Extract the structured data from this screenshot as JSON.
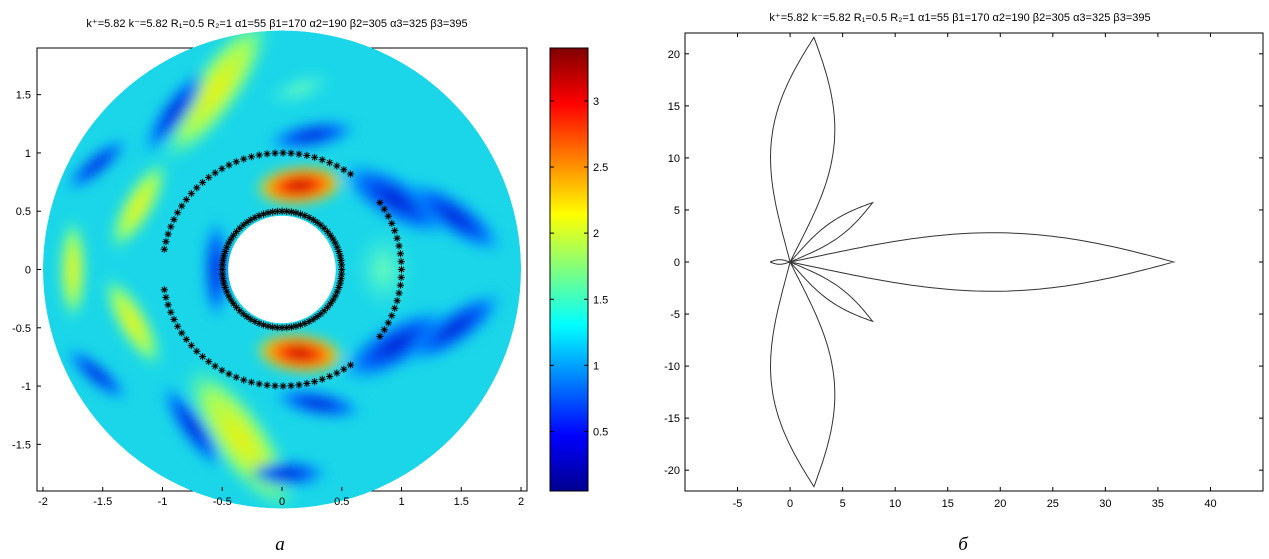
{
  "chart_data": [
    {
      "type": "heatmap",
      "title": "k⁺=5.82  k⁻=5.82  R₁=0.5  R₂=1  α1=55  β1=170  α2=190  β2=305  α3=325  β3=395",
      "caption": "а",
      "xlabel": "",
      "ylabel": "",
      "xlim": [
        -2.05,
        2.05
      ],
      "ylim": [
        -1.9,
        1.9
      ],
      "xticks": [
        "-2",
        "-1.5",
        "-1",
        "-0.5",
        "0",
        "0.5",
        "1",
        "1.5",
        "2"
      ],
      "yticks": [
        "1.5",
        "1",
        "0.5",
        "0",
        "-0.5",
        "-1",
        "-1.5"
      ],
      "domain": {
        "inner_radius": 0.45,
        "outer_radius": 2.0
      },
      "inner_circle_radius": 0.5,
      "arcs": [
        {
          "radius": 1.0,
          "from_deg": 55,
          "to_deg": 170
        },
        {
          "radius": 1.0,
          "from_deg": 190,
          "to_deg": 305
        },
        {
          "radius": 1.0,
          "from_deg": 325,
          "to_deg": 395
        }
      ],
      "colorbar": {
        "min": 0.05,
        "max": 3.4,
        "ticks": [
          "3",
          "2.5",
          "2",
          "1.5",
          "1",
          "0.5"
        ],
        "colormap": "jet"
      }
    },
    {
      "type": "line",
      "title": "k⁺=5.82  k⁻=5.82  R₁=0.5  R₂=1  α1=55  β1=170  α2=190  β2=305  α3=325  β3=395",
      "caption": "б",
      "xlabel": "",
      "ylabel": "",
      "xlim": [
        -10,
        45
      ],
      "ylim": [
        -22,
        22
      ],
      "xticks": [
        "-5",
        "0",
        "5",
        "10",
        "15",
        "20",
        "25",
        "30",
        "35",
        "40"
      ],
      "yticks": [
        "20",
        "15",
        "10",
        "5",
        "0",
        "-5",
        "-10",
        "-15",
        "-20"
      ],
      "lobes": [
        {
          "angle_deg": 0,
          "reach": 36.5,
          "width": 3.2
        },
        {
          "angle_deg": 36,
          "reach": 9.7,
          "width": 0.9
        },
        {
          "angle_deg": -36,
          "reach": 9.7,
          "width": 0.9
        },
        {
          "angle_deg": 84,
          "reach": 21.7,
          "width": 3.4
        },
        {
          "angle_deg": -84,
          "reach": 21.7,
          "width": 3.4
        },
        {
          "angle_deg": 180,
          "reach": 1.9,
          "width": 0.25
        }
      ]
    }
  ]
}
